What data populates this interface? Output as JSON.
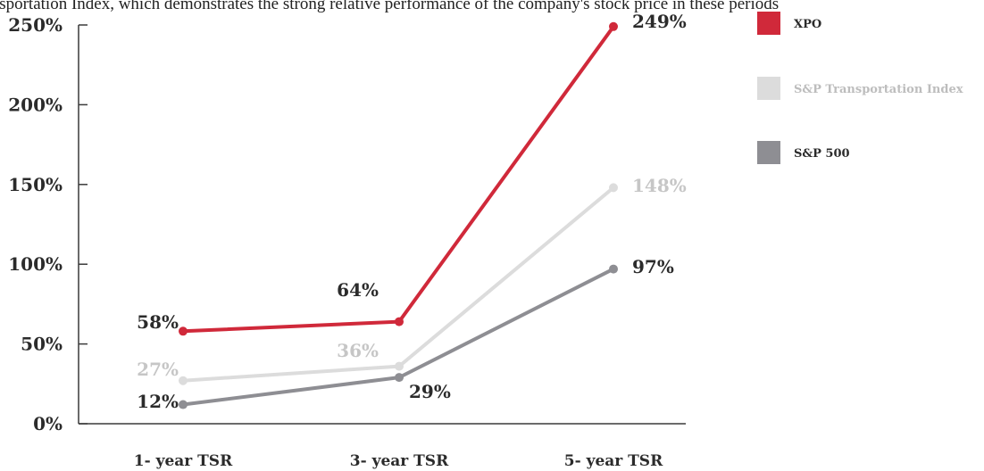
{
  "caption": "Transportation Index, which demonstrates the strong relative performance of the company's stock price in these periods",
  "chart_data": {
    "type": "line",
    "categories": [
      "1- year TSR",
      "3- year TSR",
      "5- year TSR"
    ],
    "yticks": [
      "0%",
      "50%",
      "100%",
      "150%",
      "200%",
      "250%"
    ],
    "ylim": [
      0,
      250
    ],
    "series": [
      {
        "name": "XPO",
        "color": "#d0293a",
        "values": [
          58,
          64,
          249
        ],
        "labels": [
          "58%",
          "64%",
          "249%"
        ]
      },
      {
        "name": "S&P Transportation Index",
        "color": "#dcdcdc",
        "values": [
          27,
          36,
          148
        ],
        "labels": [
          "27%",
          "36%",
          "148%"
        ]
      },
      {
        "name": "S&P 500",
        "color": "#8e8e93",
        "values": [
          12,
          29,
          97
        ],
        "labels": [
          "12%",
          "29%",
          "97%"
        ]
      }
    ],
    "legend_placement": "right",
    "grid": false
  }
}
